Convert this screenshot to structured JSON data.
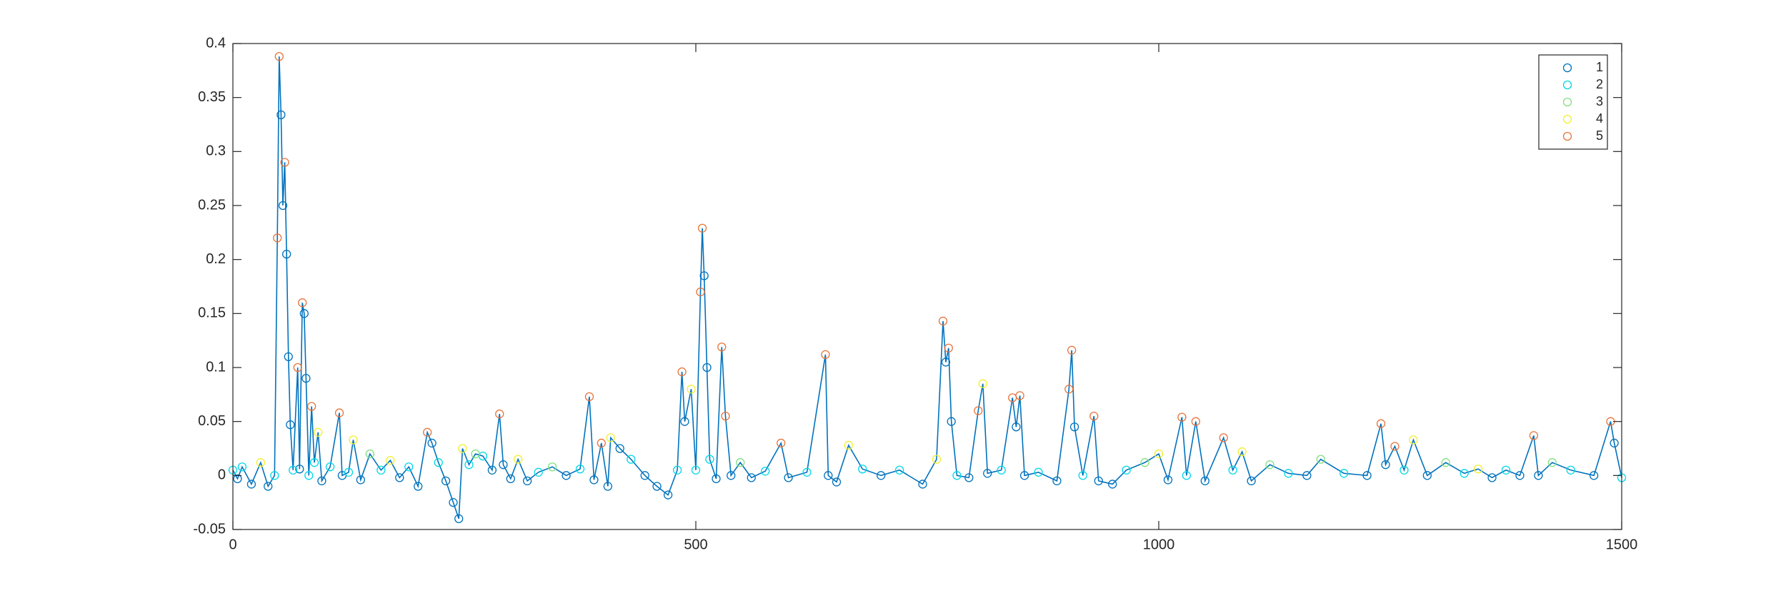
{
  "chart_data": {
    "type": "line",
    "xlim": [
      0,
      1500
    ],
    "ylim": [
      -0.05,
      0.4
    ],
    "xticks": [
      0,
      500,
      1000,
      1500
    ],
    "yticks": [
      -0.05,
      0,
      0.05,
      0.1,
      0.15,
      0.2,
      0.25,
      0.3,
      0.35,
      0.4
    ],
    "grid": false,
    "legend": "northeast",
    "line": {
      "color": "#0072bd",
      "x": [
        0,
        5,
        10,
        20,
        30,
        38,
        45,
        48,
        50,
        52,
        54,
        56,
        58,
        60,
        62,
        65,
        70,
        72,
        75,
        77,
        79,
        82,
        85,
        88,
        92,
        96,
        105,
        115,
        118,
        125,
        130,
        138,
        148,
        160,
        170,
        180,
        190,
        200,
        210,
        215,
        222,
        230,
        238,
        244,
        248,
        255,
        262,
        270,
        280,
        288,
        292,
        300,
        308,
        318,
        330,
        345,
        360,
        375,
        385,
        390,
        398,
        405,
        408,
        418,
        430,
        445,
        458,
        470,
        480,
        485,
        488,
        495,
        500,
        505,
        507,
        509,
        512,
        515,
        522,
        528,
        532,
        538,
        548,
        560,
        575,
        592,
        600,
        620,
        640,
        643,
        652,
        665,
        680,
        700,
        720,
        745,
        760,
        767,
        770,
        773,
        776,
        782,
        795,
        805,
        810,
        815,
        830,
        842,
        846,
        850,
        855,
        870,
        890,
        903,
        906,
        909,
        918,
        930,
        935,
        950,
        965,
        985,
        1000,
        1010,
        1025,
        1030,
        1040,
        1050,
        1070,
        1080,
        1090,
        1100,
        1120,
        1140,
        1160,
        1175,
        1200,
        1225,
        1240,
        1245,
        1255,
        1265,
        1275,
        1290,
        1310,
        1330,
        1345,
        1360,
        1375,
        1390,
        1405,
        1410,
        1425,
        1445,
        1470,
        1488,
        1492,
        1500
      ],
      "values": [
        0.005,
        -0.003,
        0.008,
        -0.008,
        0.012,
        -0.01,
        0,
        0.22,
        0.388,
        0.334,
        0.25,
        0.29,
        0.205,
        0.11,
        0.047,
        0.005,
        0.1,
        0.006,
        0.16,
        0.15,
        0.09,
        0,
        0.064,
        0.012,
        0.04,
        -0.005,
        0.008,
        0.058,
        0,
        0.003,
        0.033,
        -0.004,
        0.02,
        0.005,
        0.014,
        -0.002,
        0.008,
        -0.01,
        0.04,
        0.03,
        0.012,
        -0.005,
        -0.025,
        -0.04,
        0.025,
        0.01,
        0.02,
        0.018,
        0.005,
        0.057,
        0.01,
        -0.003,
        0.015,
        -0.005,
        0.003,
        0.008,
        0,
        0.006,
        0.073,
        -0.004,
        0.03,
        -0.01,
        0.035,
        0.025,
        0.015,
        0,
        -0.01,
        -0.018,
        0.005,
        0.096,
        0.05,
        0.08,
        0.005,
        0.17,
        0.229,
        0.185,
        0.1,
        0.015,
        -0.003,
        0.119,
        0.055,
        0,
        0.012,
        -0.002,
        0.004,
        0.03,
        -0.002,
        0.003,
        0.112,
        0,
        -0.006,
        0.028,
        0.006,
        0,
        0.005,
        -0.008,
        0.015,
        0.143,
        0.105,
        0.118,
        0.05,
        0,
        -0.002,
        0.06,
        0.085,
        0.002,
        0.005,
        0.072,
        0.045,
        0.074,
        0,
        0.003,
        -0.005,
        0.08,
        0.116,
        0.045,
        0,
        0.055,
        -0.005,
        -0.008,
        0.005,
        0.012,
        0.02,
        -0.004,
        0.054,
        0,
        0.05,
        -0.005,
        0.035,
        0.005,
        0.022,
        -0.005,
        0.01,
        0.002,
        0,
        0.015,
        0.002,
        0,
        0.048,
        0.01,
        0.027,
        0.005,
        0.033,
        0,
        0.012,
        0.002,
        0.006,
        -0.002,
        0.005,
        0,
        0.037,
        0,
        0.012,
        0.005,
        0,
        0.05,
        0.03,
        -0.002
      ]
    },
    "series": [
      {
        "name": "1",
        "color": "#0072bd",
        "x": [
          5,
          20,
          38,
          52,
          54,
          58,
          60,
          62,
          72,
          77,
          79,
          96,
          118,
          138,
          180,
          200,
          215,
          230,
          238,
          244,
          280,
          292,
          300,
          318,
          360,
          390,
          405,
          418,
          445,
          458,
          470,
          488,
          509,
          512,
          522,
          538,
          560,
          600,
          643,
          652,
          700,
          745,
          770,
          776,
          795,
          815,
          846,
          855,
          890,
          909,
          935,
          950,
          1010,
          1050,
          1100,
          1160,
          1225,
          1245,
          1290,
          1360,
          1390,
          1410,
          1470,
          1492
        ],
        "values": [
          -0.003,
          -0.008,
          -0.01,
          0.334,
          0.25,
          0.205,
          0.11,
          0.047,
          0.006,
          0.15,
          0.09,
          -0.005,
          0,
          -0.004,
          -0.002,
          -0.01,
          0.03,
          -0.005,
          -0.025,
          -0.04,
          0.005,
          0.01,
          -0.003,
          -0.005,
          0,
          -0.004,
          -0.01,
          0.025,
          0,
          -0.01,
          -0.018,
          0.05,
          0.185,
          0.1,
          -0.003,
          0,
          -0.002,
          -0.002,
          0,
          -0.006,
          0,
          -0.008,
          0.105,
          0.05,
          -0.002,
          0.002,
          0.045,
          0,
          -0.005,
          0.045,
          -0.005,
          -0.008,
          -0.004,
          -0.005,
          -0.005,
          0,
          0,
          0.01,
          0,
          -0.002,
          0,
          0,
          0,
          0.03
        ]
      },
      {
        "name": "2",
        "color": "#00d8e6",
        "x": [
          0,
          10,
          45,
          65,
          82,
          88,
          105,
          125,
          160,
          190,
          222,
          255,
          270,
          330,
          375,
          430,
          480,
          500,
          515,
          575,
          620,
          680,
          720,
          782,
          830,
          870,
          918,
          965,
          1030,
          1080,
          1140,
          1200,
          1265,
          1330,
          1375,
          1445,
          1500
        ],
        "values": [
          0.005,
          0.008,
          0,
          0.005,
          0,
          0.012,
          0.008,
          0.003,
          0.005,
          0.008,
          0.012,
          0.01,
          0.018,
          0.003,
          0.006,
          0.015,
          0.005,
          0.005,
          0.015,
          0.004,
          0.003,
          0.006,
          0.005,
          0,
          0.005,
          0.003,
          0,
          0.005,
          0,
          0.005,
          0.002,
          0.002,
          0.005,
          0.002,
          0.005,
          0.005,
          -0.002
        ]
      },
      {
        "name": "3",
        "color": "#80e080",
        "x": [
          148,
          262,
          345,
          548,
          985,
          1120,
          1175,
          1310,
          1425
        ],
        "values": [
          0.02,
          0.02,
          0.008,
          0.012,
          0.012,
          0.01,
          0.015,
          0.012,
          0.012
        ]
      },
      {
        "name": "4",
        "color": "#f2ee30",
        "x": [
          30,
          92,
          130,
          170,
          248,
          308,
          408,
          495,
          665,
          760,
          810,
          1000,
          1090,
          1275,
          1345
        ],
        "values": [
          0.012,
          0.04,
          0.033,
          0.014,
          0.025,
          0.015,
          0.035,
          0.08,
          0.028,
          0.015,
          0.085,
          0.02,
          0.022,
          0.033,
          0.006
        ]
      },
      {
        "name": "5",
        "color": "#e8743b",
        "x": [
          48,
          50,
          56,
          70,
          75,
          85,
          115,
          210,
          288,
          385,
          398,
          485,
          505,
          507,
          528,
          532,
          592,
          640,
          767,
          773,
          805,
          842,
          850,
          903,
          906,
          930,
          1025,
          1040,
          1070,
          1240,
          1255,
          1405,
          1488
        ],
        "values": [
          0.22,
          0.388,
          0.29,
          0.1,
          0.16,
          0.064,
          0.058,
          0.04,
          0.057,
          0.073,
          0.03,
          0.096,
          0.17,
          0.229,
          0.119,
          0.055,
          0.03,
          0.112,
          0.143,
          0.118,
          0.06,
          0.072,
          0.074,
          0.08,
          0.116,
          0.055,
          0.054,
          0.05,
          0.035,
          0.048,
          0.027,
          0.037,
          0.05
        ]
      }
    ]
  }
}
